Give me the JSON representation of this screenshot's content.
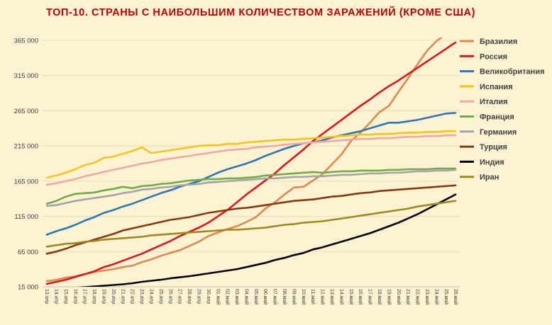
{
  "chart_data": {
    "type": "line",
    "title": "ТОП-10. СТРАНЫ С НАИБОЛЬШИМ КОЛИЧЕСТВОМ ЗАРАЖЕНИЙ (КРОМЕ США)",
    "xlabel": "",
    "ylabel": "",
    "ylim": [
      15000,
      380000
    ],
    "yticks": [
      15000,
      65000,
      115000,
      165000,
      215000,
      265000,
      315000,
      365000
    ],
    "ytick_labels": [
      "15 000",
      "65 000",
      "115 000",
      "165 000",
      "215 000",
      "265 000",
      "315 000",
      "365 000"
    ],
    "grid": "horizontal",
    "legend_position": "right",
    "categories": [
      "13.апр",
      "14.апр",
      "15.апр",
      "16.апр",
      "17.апр",
      "18.апр",
      "19.апр",
      "20.апр",
      "21.апр",
      "22.апр",
      "23.апр",
      "24.апр",
      "25.апр",
      "26.апр",
      "27.апр",
      "28.апр",
      "29.апр",
      "30.апр",
      "01.май",
      "02.май",
      "03.май",
      "04.май",
      "05.май",
      "06.май",
      "07.май",
      "08.май",
      "09.май",
      "10.май",
      "11.май",
      "12.май",
      "13.май",
      "14.май",
      "15.май",
      "16.май",
      "17.май",
      "18.май",
      "19.май",
      "20.май",
      "21.май",
      "22.май",
      "23.май",
      "24.май",
      "25.май",
      "26.май"
    ],
    "series": [
      {
        "name": "Бразилия",
        "color": "#e08a4a",
        "values": [
          23000,
          25000,
          28000,
          30000,
          33000,
          36000,
          38000,
          40000,
          43000,
          45000,
          50000,
          54000,
          59000,
          63000,
          67000,
          73000,
          79000,
          87000,
          92000,
          97000,
          101000,
          107000,
          114000,
          126000,
          135000,
          146000,
          156000,
          157000,
          166000,
          175000,
          189000,
          203000,
          222000,
          234000,
          248000,
          263000,
          272000,
          292000,
          311000,
          331000,
          350000,
          364000,
          374000,
          385000
        ]
      },
      {
        "name": "Россия",
        "color": "#e0141e",
        "values": [
          19000,
          22000,
          25000,
          29000,
          33000,
          37000,
          43000,
          47000,
          52000,
          57000,
          62000,
          68000,
          74000,
          80000,
          87000,
          93000,
          99000,
          106000,
          115000,
          124000,
          135000,
          146000,
          156000,
          166000,
          176000,
          188000,
          199000,
          210000,
          222000,
          232000,
          242000,
          252000,
          262000,
          272000,
          281000,
          291000,
          300000,
          308000,
          317000,
          326000,
          335000,
          344000,
          353000,
          362000
        ]
      },
      {
        "name": "Великобритания",
        "color": "#2e75b6",
        "values": [
          89000,
          94000,
          98000,
          103000,
          109000,
          114000,
          120000,
          124000,
          129000,
          133000,
          138000,
          143000,
          148000,
          152000,
          157000,
          161000,
          165000,
          171000,
          177000,
          182000,
          186000,
          190000,
          195000,
          201000,
          206000,
          211000,
          215000,
          219000,
          220000,
          223000,
          227000,
          230000,
          233000,
          236000,
          240000,
          244000,
          248000,
          248000,
          250000,
          252000,
          255000,
          258000,
          261000,
          262000
        ]
      },
      {
        "name": "Испания",
        "color": "#f5c518",
        "values": [
          170000,
          173000,
          177000,
          182000,
          188000,
          191000,
          198000,
          200000,
          204000,
          208000,
          213000,
          205000,
          207000,
          209000,
          211000,
          213000,
          215000,
          216000,
          216000,
          218000,
          218000,
          220000,
          221000,
          222000,
          223000,
          224000,
          224000,
          225000,
          226000,
          227000,
          228000,
          229000,
          230000,
          231000,
          231000,
          232000,
          232000,
          233000,
          234000,
          234000,
          235000,
          235000,
          236000,
          236000
        ]
      },
      {
        "name": "Италия",
        "color": "#f2a7a7",
        "values": [
          160000,
          162000,
          165000,
          168000,
          172000,
          175000,
          178000,
          181000,
          184000,
          187000,
          190000,
          192000,
          195000,
          197000,
          199000,
          201000,
          203000,
          205000,
          207000,
          209000,
          210000,
          211000,
          213000,
          214000,
          215000,
          217000,
          218000,
          219000,
          220000,
          221000,
          222000,
          223000,
          224000,
          225000,
          225000,
          226000,
          226000,
          227000,
          228000,
          228000,
          229000,
          229000,
          230000,
          230000
        ]
      },
      {
        "name": "Франция",
        "color": "#70ad47",
        "values": [
          133000,
          137000,
          143000,
          147000,
          148000,
          149000,
          152000,
          154000,
          157000,
          155000,
          158000,
          159000,
          161000,
          162000,
          164000,
          166000,
          167000,
          168000,
          168000,
          169000,
          169000,
          170000,
          171000,
          173000,
          174000,
          175000,
          176000,
          177000,
          178000,
          177000,
          178000,
          179000,
          179000,
          180000,
          180000,
          180000,
          181000,
          181000,
          182000,
          182000,
          182000,
          183000,
          183000,
          183000
        ]
      },
      {
        "name": "Германия",
        "color": "#a5a5a5",
        "values": [
          130000,
          131000,
          134000,
          137000,
          139000,
          141000,
          143000,
          145000,
          148000,
          150000,
          153000,
          154000,
          156000,
          157000,
          159000,
          160000,
          161000,
          163000,
          164000,
          165000,
          166000,
          167000,
          168000,
          169000,
          169000,
          170000,
          171000,
          171000,
          172000,
          172000,
          173000,
          174000,
          174000,
          175000,
          176000,
          176000,
          177000,
          177000,
          178000,
          179000,
          179000,
          180000,
          180000,
          181000
        ]
      },
      {
        "name": "Турция",
        "color": "#843c0c",
        "values": [
          62000,
          65000,
          69000,
          74000,
          78000,
          82000,
          86000,
          90000,
          95000,
          98000,
          101000,
          104000,
          107000,
          110000,
          112000,
          114000,
          117000,
          120000,
          122000,
          124000,
          126000,
          127000,
          129000,
          131000,
          133000,
          135000,
          137000,
          138000,
          139000,
          141000,
          143000,
          144000,
          146000,
          148000,
          149000,
          151000,
          152000,
          153000,
          154000,
          155000,
          156000,
          157000,
          158000,
          159000
        ]
      },
      {
        "name": "Индия",
        "color": "#000000",
        "values": [
          10000,
          12000,
          12500,
          13500,
          14500,
          15500,
          16500,
          17500,
          18500,
          20000,
          22000,
          23500,
          25000,
          27000,
          28500,
          30000,
          32000,
          34000,
          36000,
          38000,
          40000,
          43000,
          46000,
          49000,
          53000,
          56000,
          60000,
          63000,
          68000,
          71000,
          75000,
          79000,
          83000,
          87000,
          91000,
          96000,
          101000,
          106000,
          112000,
          118000,
          125000,
          132000,
          139000,
          146000
        ]
      },
      {
        "name": "Иран",
        "color": "#9c8a1a",
        "values": [
          72000,
          74000,
          76000,
          77000,
          79000,
          80000,
          82000,
          83000,
          84000,
          85000,
          86000,
          88000,
          89000,
          90000,
          91000,
          92000,
          93000,
          94000,
          95000,
          96000,
          96000,
          97000,
          98000,
          99000,
          101000,
          103000,
          104000,
          106000,
          107000,
          108000,
          110000,
          112000,
          114000,
          116000,
          118000,
          120000,
          122000,
          124000,
          126000,
          129000,
          131000,
          133000,
          135000,
          137000
        ]
      }
    ]
  }
}
